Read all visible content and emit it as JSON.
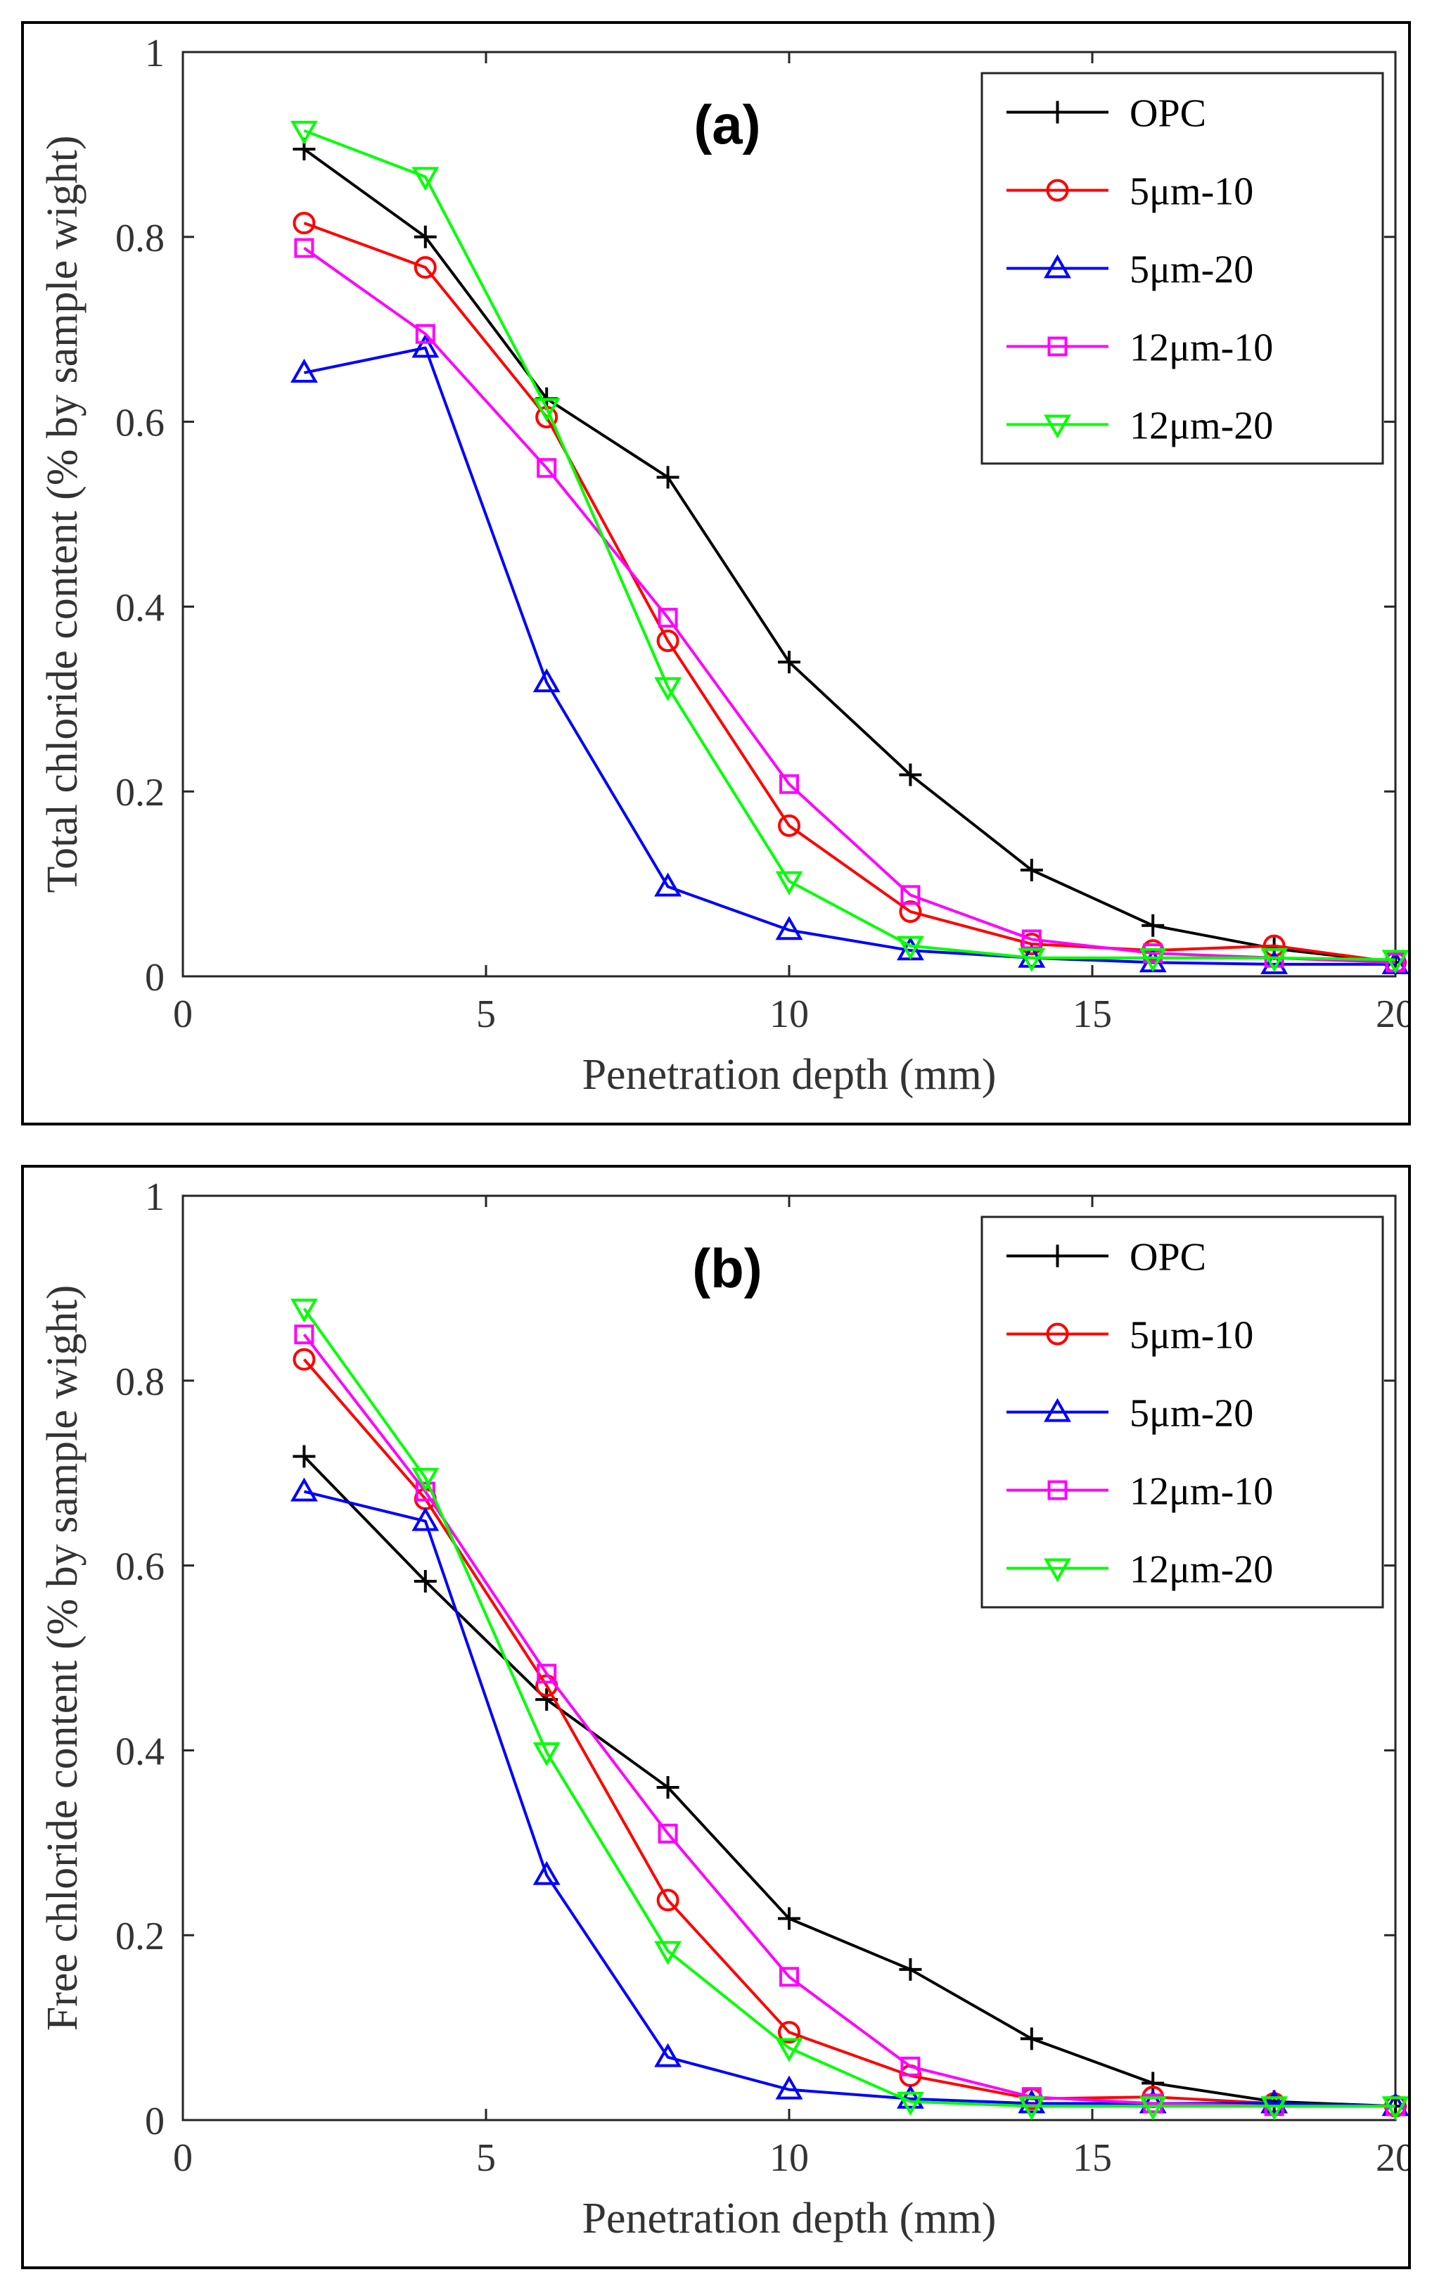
{
  "chart_data": [
    {
      "type": "line",
      "panel_label": "(a)",
      "xlabel": "Penetration depth (mm)",
      "ylabel": "Total chloride content (% by sample wight)",
      "xlim": [
        0,
        20
      ],
      "ylim": [
        0,
        1
      ],
      "xticks": [
        "0",
        "5",
        "10",
        "15",
        "20"
      ],
      "yticks": [
        "0",
        "0.2",
        "0.4",
        "0.6",
        "0.8",
        "1"
      ],
      "legend_position": "top-right",
      "x": [
        2,
        4,
        6,
        8,
        10,
        12,
        14,
        16,
        18,
        20
      ],
      "series": [
        {
          "name": "OPC",
          "color": "#000000",
          "marker": "plus",
          "values": [
            0.895,
            0.8,
            0.625,
            0.54,
            0.34,
            0.218,
            0.115,
            0.055,
            0.03,
            0.015
          ]
        },
        {
          "name": "5μm-10",
          "color": "#ff0000",
          "marker": "circle",
          "values": [
            0.815,
            0.767,
            0.605,
            0.363,
            0.163,
            0.07,
            0.035,
            0.028,
            0.033,
            0.015
          ]
        },
        {
          "name": "5μm-20",
          "color": "#0000ff",
          "marker": "triangle-up",
          "values": [
            0.653,
            0.68,
            0.318,
            0.097,
            0.05,
            0.028,
            0.02,
            0.015,
            0.013,
            0.013
          ]
        },
        {
          "name": "12μm-10",
          "color": "#ff00ff",
          "marker": "square",
          "values": [
            0.788,
            0.695,
            0.55,
            0.388,
            0.208,
            0.088,
            0.04,
            0.025,
            0.02,
            0.015
          ]
        },
        {
          "name": "12μm-20",
          "color": "#00ff00",
          "marker": "triangle-down",
          "values": [
            0.915,
            0.865,
            0.615,
            0.313,
            0.103,
            0.033,
            0.02,
            0.02,
            0.02,
            0.018
          ]
        }
      ]
    },
    {
      "type": "line",
      "panel_label": "(b)",
      "xlabel": "Penetration depth (mm)",
      "ylabel": "Free chloride content (% by sample wight)",
      "xlim": [
        0,
        20
      ],
      "ylim": [
        0,
        1
      ],
      "xticks": [
        "0",
        "5",
        "10",
        "15",
        "20"
      ],
      "yticks": [
        "0",
        "0.2",
        "0.4",
        "0.6",
        "0.8",
        "1"
      ],
      "legend_position": "top-right",
      "x": [
        2,
        4,
        6,
        8,
        10,
        12,
        14,
        16,
        18,
        20
      ],
      "series": [
        {
          "name": "OPC",
          "color": "#000000",
          "marker": "plus",
          "values": [
            0.718,
            0.583,
            0.455,
            0.36,
            0.218,
            0.163,
            0.088,
            0.04,
            0.02,
            0.015
          ]
        },
        {
          "name": "5μm-10",
          "color": "#ff0000",
          "marker": "circle",
          "values": [
            0.823,
            0.672,
            0.47,
            0.238,
            0.095,
            0.048,
            0.023,
            0.025,
            0.018,
            0.015
          ]
        },
        {
          "name": "5μm-20",
          "color": "#0000ff",
          "marker": "triangle-up",
          "values": [
            0.68,
            0.648,
            0.265,
            0.068,
            0.033,
            0.023,
            0.018,
            0.018,
            0.018,
            0.015
          ]
        },
        {
          "name": "12μm-10",
          "color": "#ff00ff",
          "marker": "square",
          "values": [
            0.85,
            0.68,
            0.483,
            0.31,
            0.155,
            0.058,
            0.025,
            0.018,
            0.015,
            0.015
          ]
        },
        {
          "name": "12μm-20",
          "color": "#00ff00",
          "marker": "triangle-down",
          "values": [
            0.878,
            0.695,
            0.398,
            0.183,
            0.078,
            0.02,
            0.015,
            0.015,
            0.015,
            0.015
          ]
        }
      ]
    }
  ]
}
